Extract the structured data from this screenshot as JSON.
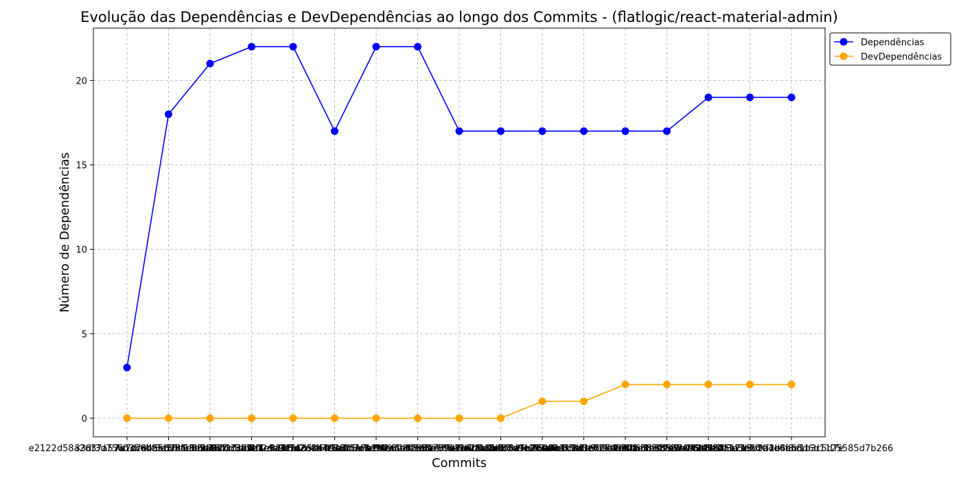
{
  "chart_data": {
    "type": "line",
    "title": "Evolução das Dependências e DevDependências ao longo dos Commits - (flatlogic/react-material-admin)",
    "xlabel": "Commits",
    "ylabel": "Número de Dependências",
    "categories": [
      "e2122d58a2637a57a1d7e4a56785c05d4b0",
      "33df3d756b3b6bf5d1f9f18e9067dd5a3e1",
      "7a7cc8b5ab5b4e80b76c27c0f8b2dc9b1d2",
      "fa56c63b7a2e7c1bb4f1e3f9e7ad5c47e38",
      "5a91f2c3b8d4e6a7f1c2d3e4f5a6b7c8d9e",
      "b7e1c9a3f5d2e8b4c6a1f3e5d7b9c2a4e6f",
      "c8d2e4f6a1b3c5d7e9f2a4b6c8d1e3f5a7b",
      "d9e3f5a7b2c4d6e8f1a3b5c7d9e2f4a6b8c",
      "e1f4a6b8c3d5e7f9a2b4c6d8e1f3a5b7c9d",
      "f2a5b7c9d4e6f8a1b3c5d7e9f2a4b6c8d1e",
      "a3b6c8d1e5f7a9b2c4d6e8f1a3b5c7d9e2f",
      "b4c7d9e2f6a8b1c3d5e7f9a2b4c6d8e1f3a",
      "c5d8e1f3a7b9c2d4e6f8a1b3c5d7e9f2a4b",
      "d6e9f2a4b8c1d3e5f7a9b2c4d6e8f1a3b5c",
      "e7f1a3b5c9d2e4f6a8b1c3d5e7f9a2b4c6d",
      "f8a2b4c6d1e3f5a7b9c2d4e6f8a1b3c5d7e",
      "494981a1213c1ff3d5ab5d6d1125585d7b266"
    ],
    "ylim": [
      -1.1,
      23.1
    ],
    "yticks": [
      0,
      5,
      10,
      15,
      20
    ],
    "grid": true,
    "legend_position": "upper-right-outside",
    "series": [
      {
        "name": "Dependências",
        "color": "#0000ff",
        "marker": "circle",
        "values": [
          3,
          18,
          21,
          22,
          22,
          17,
          22,
          22,
          17,
          17,
          17,
          17,
          17,
          17,
          19,
          19,
          19
        ]
      },
      {
        "name": "DevDependências",
        "color": "#ffa500",
        "marker": "circle",
        "values": [
          0,
          0,
          0,
          0,
          0,
          0,
          0,
          0,
          0,
          0,
          1,
          1,
          2,
          2,
          2,
          2,
          2
        ]
      }
    ]
  }
}
